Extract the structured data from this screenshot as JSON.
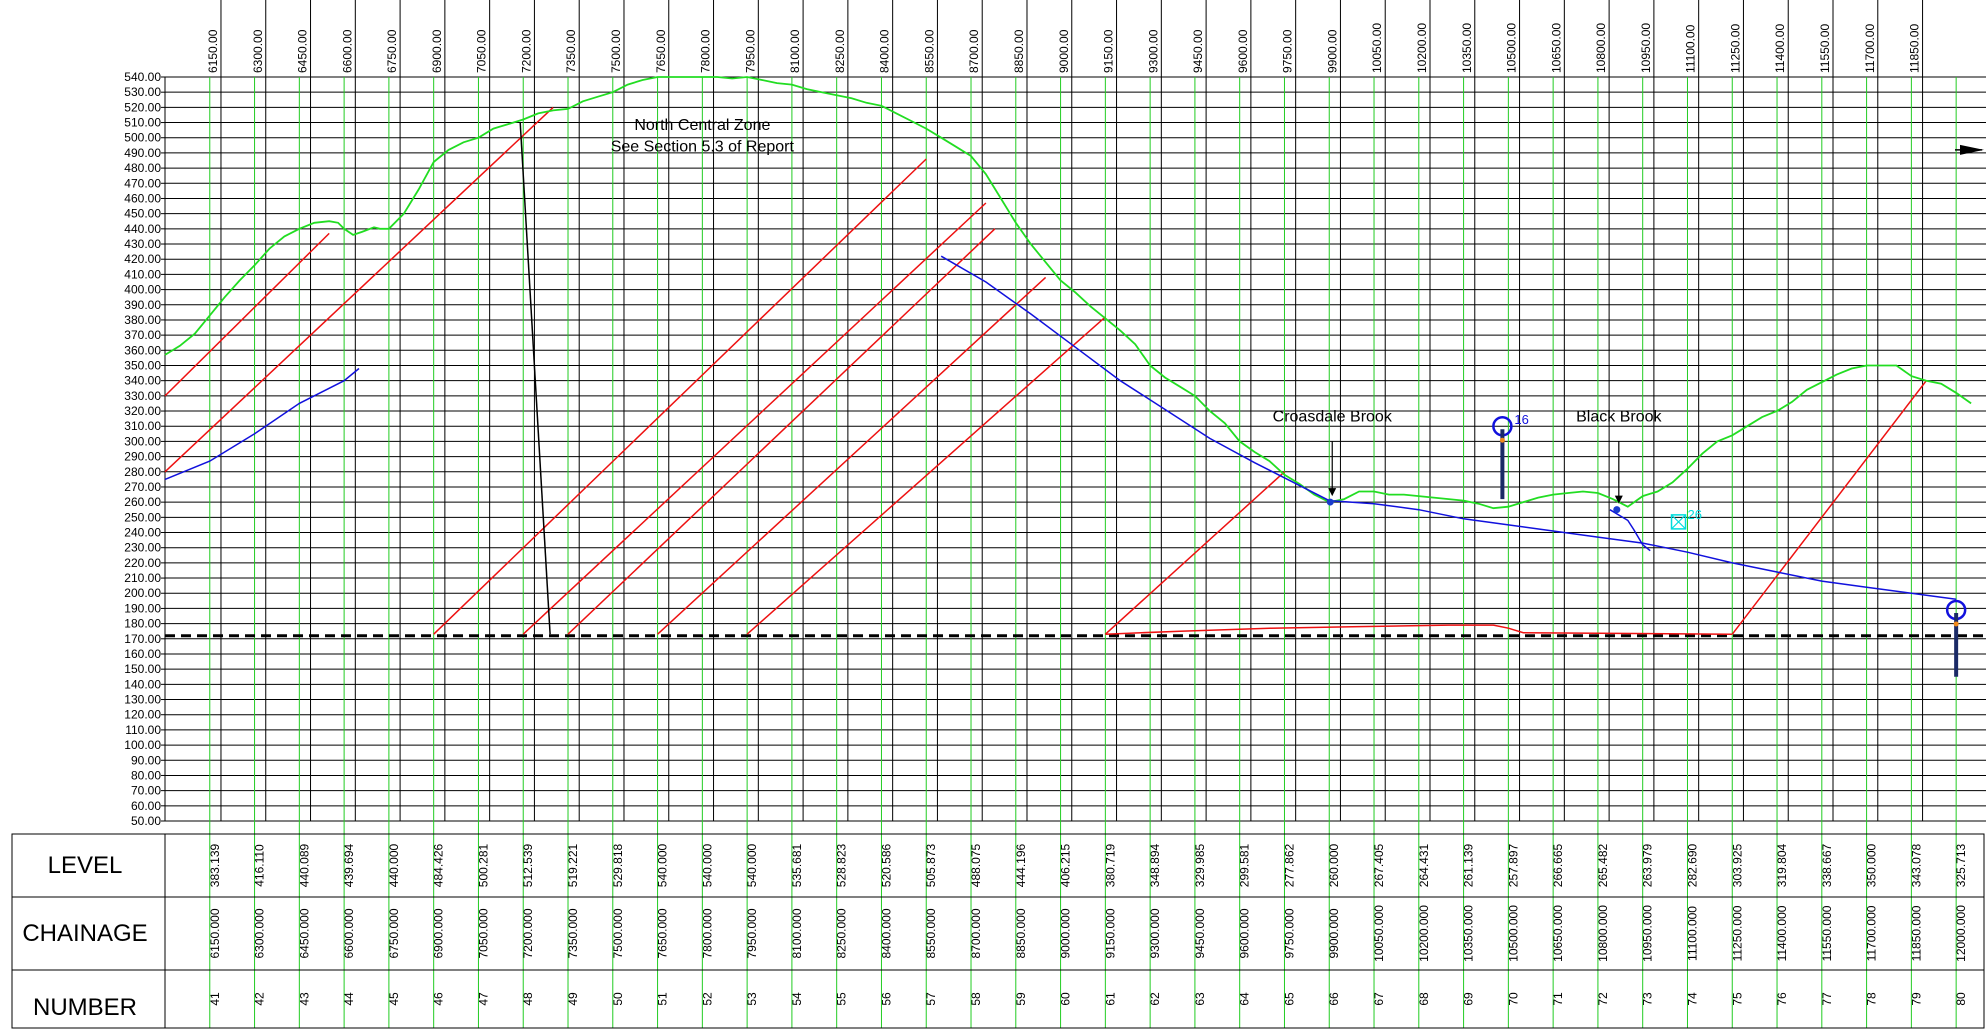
{
  "chart_data": {
    "type": "line",
    "title": "",
    "y_axis": {
      "min": 50,
      "max": 540,
      "step": 10,
      "tick_labels": [
        "540.00",
        "530.00",
        "520.00",
        "510.00",
        "500.00",
        "490.00",
        "480.00",
        "470.00",
        "460.00",
        "450.00",
        "440.00",
        "430.00",
        "420.00",
        "410.00",
        "400.00",
        "390.00",
        "380.00",
        "370.00",
        "360.00",
        "350.00",
        "340.00",
        "330.00",
        "320.00",
        "310.00",
        "300.00",
        "290.00",
        "280.00",
        "270.00",
        "260.00",
        "250.00",
        "240.00",
        "230.00",
        "220.00",
        "210.00",
        "200.00",
        "190.00",
        "180.00",
        "170.00",
        "160.00",
        "150.00",
        "140.00",
        "130.00",
        "120.00",
        "110.00",
        "100.00",
        "90.00",
        "80.00",
        "70.00",
        "60.00",
        "50.00"
      ]
    },
    "x_axis": {
      "min": 6050,
      "max": 12050,
      "tick_labels": [
        "6150.00",
        "6300.00",
        "6450.00",
        "6600.00",
        "6750.00",
        "6900.00",
        "7050.00",
        "7200.00",
        "7350.00",
        "7500.00",
        "7650.00",
        "7800.00",
        "7950.00",
        "8100.00",
        "8250.00",
        "8400.00",
        "8550.00",
        "8700.00",
        "8850.00",
        "9000.00",
        "9150.00",
        "9300.00",
        "9450.00",
        "9600.00",
        "9750.00",
        "9900.00",
        "10050.00",
        "10200.00",
        "10350.00",
        "10500.00",
        "10650.00",
        "10800.00",
        "10950.00",
        "11100.00",
        "11250.00",
        "11400.00",
        "11550.00",
        "11700.00",
        "11850.00"
      ]
    },
    "stations": {
      "chainage": [
        6150,
        6300,
        6450,
        6600,
        6750,
        6900,
        7050,
        7200,
        7350,
        7500,
        7650,
        7800,
        7950,
        8100,
        8250,
        8400,
        8550,
        8700,
        8850,
        9000,
        9150,
        9300,
        9450,
        9600,
        9750,
        9900,
        10050,
        10200,
        10350,
        10500,
        10650,
        10800,
        10950,
        11100,
        11250,
        11400,
        11550,
        11700,
        11850,
        12000
      ],
      "level": [
        383.139,
        416.11,
        440.089,
        439.694,
        440.0,
        484.426,
        500.281,
        512.539,
        519.221,
        529.818,
        540.0,
        540.0,
        540.0,
        535.681,
        528.823,
        520.586,
        505.873,
        488.075,
        444.196,
        406.215,
        380.719,
        348.894,
        329.985,
        299.581,
        277.862,
        260.0,
        267.405,
        264.431,
        261.139,
        257.897,
        266.665,
        265.482,
        263.979,
        282.69,
        303.925,
        319.804,
        338.667,
        350.0,
        343.078,
        325.713
      ]
    },
    "series": [
      {
        "name": "",
        "kind": "ground-profile",
        "color": "#22dd22",
        "x": [
          6000,
          6050,
          6100,
          6150,
          6200,
          6250,
          6300,
          6350,
          6400,
          6450,
          6500,
          6550,
          6580,
          6600,
          6630,
          6660,
          6700,
          6720,
          6750,
          6800,
          6850,
          6900,
          6950,
          7000,
          7050,
          7100,
          7150,
          7200,
          7250,
          7300,
          7350,
          7400,
          7450,
          7500,
          7550,
          7600,
          7650,
          7700,
          7750,
          7800,
          7850,
          7900,
          7950,
          8000,
          8050,
          8100,
          8150,
          8200,
          8250,
          8300,
          8350,
          8400,
          8450,
          8500,
          8550,
          8600,
          8650,
          8700,
          8750,
          8800,
          8850,
          8900,
          8950,
          9000,
          9050,
          9100,
          9150,
          9200,
          9250,
          9300,
          9350,
          9400,
          9450,
          9500,
          9550,
          9600,
          9650,
          9700,
          9750,
          9800,
          9850,
          9900,
          9950,
          10000,
          10050,
          10100,
          10150,
          10200,
          10250,
          10300,
          10350,
          10400,
          10450,
          10500,
          10550,
          10600,
          10650,
          10700,
          10750,
          10800,
          10850,
          10900,
          10950,
          11000,
          11050,
          11100,
          11150,
          11200,
          11250,
          11300,
          11350,
          11400,
          11450,
          11500,
          11550,
          11600,
          11650,
          11700,
          11750,
          11800,
          11850,
          11900,
          11950,
          12000,
          12050
        ],
        "y": [
          357,
          363,
          371,
          383,
          395,
          406,
          416,
          427,
          435,
          440,
          444,
          445,
          444,
          440,
          436,
          438,
          441,
          440,
          440,
          450,
          466,
          484,
          492,
          497,
          500,
          506,
          509,
          512,
          516,
          518,
          519,
          524,
          527,
          530,
          535,
          538,
          540,
          540,
          540,
          540,
          540,
          539,
          540,
          538,
          536,
          535,
          532,
          530,
          528,
          526,
          523,
          521,
          516,
          511,
          506,
          500,
          494,
          488,
          476,
          460,
          444,
          430,
          418,
          406,
          398,
          389,
          381,
          373,
          364,
          350,
          342,
          336,
          330,
          320,
          312,
          300,
          293,
          287,
          278,
          272,
          265,
          260,
          262,
          267,
          267,
          265,
          265,
          264,
          263,
          262,
          261,
          259,
          256,
          257,
          260,
          263,
          265,
          266,
          267,
          266,
          262,
          257,
          264,
          267,
          273,
          282,
          292,
          300,
          304,
          310,
          316,
          320,
          326,
          334,
          339,
          344,
          348,
          350,
          350,
          350,
          343,
          340,
          338,
          332,
          325
        ]
      },
      {
        "name": "",
        "kind": "longitudinal-section",
        "color": "#1111dd",
        "segments": [
          {
            "x": [
              6000,
              6150,
              6300,
              6450,
              6600,
              6650
            ],
            "y": [
              275,
              287,
              305,
              325,
              340,
              348
            ]
          },
          {
            "x": [
              8600,
              8750,
              8900,
              9050,
              9200,
              9350,
              9500,
              9650,
              9800,
              9900,
              10050,
              10200,
              10350,
              10500,
              10650,
              10800,
              10950,
              11100,
              11250,
              11400,
              11550,
              11700,
              11850,
              12000
            ],
            "y": [
              422,
              405,
              384,
              362,
              340,
              321,
              302,
              286,
              271,
              261,
              259,
              255,
              249,
              245,
              241,
              237,
              233,
              227,
              220,
              214,
              208,
              204,
              200,
              196
            ]
          },
          {
            "x": [
              10840,
              10900,
              10920,
              10950,
              10975
            ],
            "y": [
              255,
              248,
              242,
              232,
              228
            ]
          }
        ]
      },
      {
        "name": "",
        "kind": "datum",
        "x": [
          6000,
          12050
        ],
        "y": [
          172,
          172
        ]
      }
    ],
    "sight_lines": [
      {
        "x": [
          6000,
          6550
        ],
        "y": [
          330,
          437
        ]
      },
      {
        "x": [
          6000,
          7300
        ],
        "y": [
          280,
          520
        ]
      },
      {
        "x": [
          6900,
          8550
        ],
        "y": [
          173,
          486
        ]
      },
      {
        "x": [
          7200,
          8750
        ],
        "y": [
          173,
          457
        ]
      },
      {
        "x": [
          7350,
          8780
        ],
        "y": [
          173,
          440
        ]
      },
      {
        "x": [
          7650,
          8950
        ],
        "y": [
          173,
          408
        ]
      },
      {
        "x": [
          7950,
          9150
        ],
        "y": [
          173,
          382
        ]
      },
      {
        "x": [
          9150,
          9750
        ],
        "y": [
          173,
          280
        ]
      },
      {
        "x": [
          11250,
          11900
        ],
        "y": [
          173,
          340
        ]
      }
    ],
    "dividing_line": {
      "x": [
        7190,
        7290
      ],
      "y": [
        510,
        173
      ]
    },
    "red_profile": {
      "x": [
        9150,
        9400,
        9700,
        10000,
        10300,
        10450,
        10500,
        10550,
        11250
      ],
      "y": [
        173,
        175,
        177,
        178,
        179,
        179,
        177,
        174,
        173
      ]
    },
    "annotations": [
      {
        "text": "North Central  Zone",
        "x": 7800,
        "y": 505
      },
      {
        "text": "See Section 5.3 of Report",
        "x": 7800,
        "y": 491
      },
      {
        "text": "Croasdale Brook",
        "x": 9910,
        "y": 313
      },
      {
        "text": "Black Brook",
        "x": 10870,
        "y": 313
      }
    ],
    "arrows": [
      {
        "x": 9910,
        "y_from": 300,
        "y_to": 264
      },
      {
        "x": 10870,
        "y_from": 300,
        "y_to": 259
      }
    ],
    "markers": [
      {
        "label": "16",
        "x": 10480,
        "y": 310,
        "color": "#1111dd",
        "stem_from": 308,
        "stem_to": 262
      },
      {
        "label": "",
        "x": 12000,
        "y": 189,
        "color": "#1111dd",
        "stem_from": 187,
        "stem_to": 145
      },
      {
        "label": "26",
        "x": 11070,
        "y": 247,
        "color": "#00dddd"
      }
    ],
    "arrow_right": {
      "y": 492
    },
    "table": {
      "row_titles": [
        "LEVEL",
        "CHAINAGE",
        "NUMBER"
      ],
      "level": [
        "383.139",
        "416.110",
        "440.089",
        "439.694",
        "440.000",
        "484.426",
        "500.281",
        "512.539",
        "519.221",
        "529.818",
        "540.000",
        "540.000",
        "540.000",
        "535.681",
        "528.823",
        "520.586",
        "505.873",
        "488.075",
        "444.196",
        "406.215",
        "380.719",
        "348.894",
        "329.985",
        "299.581",
        "277.862",
        "260.000",
        "267.405",
        "264.431",
        "261.139",
        "257.897",
        "266.665",
        "265.482",
        "263.979",
        "282.690",
        "303.925",
        "319.804",
        "338.667",
        "350.000",
        "343.078",
        "325.713"
      ],
      "chainage": [
        "6150.000",
        "6300.000",
        "6450.000",
        "6600.000",
        "6750.000",
        "6900.000",
        "7050.000",
        "7200.000",
        "7350.000",
        "7500.000",
        "7650.000",
        "7800.000",
        "7950.000",
        "8100.000",
        "8250.000",
        "8400.000",
        "8550.000",
        "8700.000",
        "8850.000",
        "9000.000",
        "9150.000",
        "9300.000",
        "9450.000",
        "9600.000",
        "9750.000",
        "9900.000",
        "10050.000",
        "10200.000",
        "10350.000",
        "10500.000",
        "10650.000",
        "10800.000",
        "10950.000",
        "11100.000",
        "11250.000",
        "11400.000",
        "11550.000",
        "11700.000",
        "11850.000",
        "12000.000"
      ],
      "number": [
        "41",
        "42",
        "43",
        "44",
        "45",
        "46",
        "47",
        "48",
        "49",
        "50",
        "51",
        "52",
        "53",
        "54",
        "55",
        "56",
        "57",
        "58",
        "59",
        "60",
        "61",
        "62",
        "63",
        "64",
        "65",
        "66",
        "67",
        "68",
        "69",
        "70",
        "71",
        "72",
        "73",
        "74",
        "75",
        "76",
        "77",
        "78",
        "79",
        "80"
      ]
    }
  }
}
